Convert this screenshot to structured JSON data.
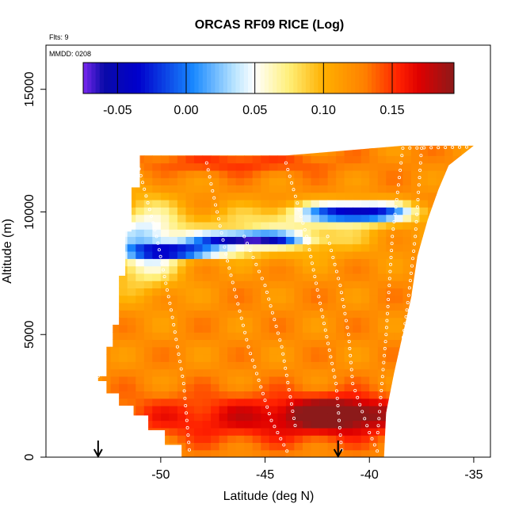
{
  "chart_data": {
    "type": "heatmap",
    "title": "ORCAS RF09 RICE (Log)",
    "annotations": {
      "flights": "Flts: 9",
      "date": "MMDD: 0208"
    },
    "xlabel": "Latitude (deg N)",
    "ylabel": "Altitude (m)",
    "xlim": [
      -55.5,
      -34.2
    ],
    "ylim": [
      0,
      16800
    ],
    "x_ticks": [
      -50,
      -45,
      -40,
      -35
    ],
    "x_tick_labels": [
      "-50",
      "-45",
      "-40",
      "-35"
    ],
    "y_ticks": [
      0,
      5000,
      10000,
      15000
    ],
    "y_tick_labels": [
      "0",
      "5000",
      "10000",
      "15000"
    ],
    "colorbar": {
      "range": [
        -0.075,
        0.195
      ],
      "ticks": [
        -0.05,
        0.0,
        0.05,
        0.1,
        0.15
      ],
      "tick_labels": [
        "-0.05",
        "0.00",
        "0.05",
        "0.10",
        "0.15"
      ],
      "colors": [
        "#7a28f0",
        "#0a0aa8",
        "#0000cc",
        "#1888ff",
        "#b8e4ff",
        "#ffffff",
        "#ffef78",
        "#ffb000",
        "#ff8000",
        "#ff2000",
        "#dd0000",
        "#8c1a1a"
      ],
      "color_stops": [
        -0.075,
        -0.06,
        -0.035,
        0.005,
        0.035,
        0.05,
        0.075,
        0.1,
        0.13,
        0.155,
        0.17,
        0.195
      ]
    },
    "domain_outline": [
      [
        -53.0,
        3100
      ],
      [
        -53.0,
        3300
      ],
      [
        -52.6,
        3300
      ],
      [
        -52.6,
        4500
      ],
      [
        -52.3,
        4500
      ],
      [
        -52.3,
        5400
      ],
      [
        -52.0,
        5400
      ],
      [
        -52.0,
        7400
      ],
      [
        -51.7,
        7400
      ],
      [
        -51.7,
        9200
      ],
      [
        -51.4,
        9200
      ],
      [
        -51.4,
        11000
      ],
      [
        -51.0,
        11000
      ],
      [
        -51.0,
        12300
      ],
      [
        -44.0,
        12300
      ],
      [
        -38.4,
        12700
      ],
      [
        -35.0,
        12700
      ],
      [
        -36.2,
        11900
      ],
      [
        -36.7,
        10900
      ],
      [
        -37.2,
        9700
      ],
      [
        -37.7,
        8200
      ],
      [
        -38.0,
        6500
      ],
      [
        -38.4,
        5000
      ],
      [
        -38.8,
        3500
      ],
      [
        -39.2,
        1800
      ],
      [
        -39.3,
        0
      ],
      [
        -49.0,
        0
      ],
      [
        -49.0,
        500
      ],
      [
        -49.8,
        500
      ],
      [
        -49.8,
        1100
      ],
      [
        -50.6,
        1100
      ],
      [
        -50.6,
        1700
      ],
      [
        -51.3,
        1700
      ],
      [
        -51.3,
        2100
      ],
      [
        -52.0,
        2100
      ],
      [
        -52.0,
        2600
      ],
      [
        -52.6,
        2600
      ],
      [
        -52.6,
        3100
      ]
    ],
    "field_features": [
      {
        "name": "background",
        "value": 0.122
      },
      {
        "name": "low-altitude red band",
        "lat": -44.0,
        "alt": 1600,
        "lat_width": 9.0,
        "alt_width": 1000,
        "value": 0.17
      },
      {
        "name": "near-surface red core",
        "lat": -41.5,
        "alt": 1800,
        "lat_width": 2.2,
        "alt_width": 600,
        "value": 0.185
      },
      {
        "name": "upper red band",
        "lat": -46.5,
        "alt": 12000,
        "lat_width": 5.0,
        "alt_width": 450,
        "value": 0.15
      },
      {
        "name": "high-lat western minimum",
        "lat": -50.8,
        "alt": 8700,
        "lat_width": 1.8,
        "alt_width": 1700,
        "value": 0.035
      },
      {
        "name": "cross-section blue streak",
        "lat": -40.5,
        "alt": 10000,
        "lat_width": 2.5,
        "alt_width": 400,
        "value": -0.045
      },
      {
        "name": "upper blue layer",
        "lat": -46.0,
        "alt": 8900,
        "lat_width": 2.5,
        "alt_width": 250,
        "value": -0.04
      },
      {
        "name": "lower blue layer",
        "lat": -49.0,
        "alt": 8400,
        "lat_width": 2.3,
        "alt_width": 230,
        "value": -0.03
      },
      {
        "name": "pale mid-level wedge",
        "lat": -44.5,
        "alt": 9200,
        "lat_width": 4.5,
        "alt_width": 1000,
        "value": 0.07
      }
    ],
    "flight_tracks": [
      {
        "name": "ascent-west",
        "points": [
          [
            -51.2,
            12300
          ],
          [
            -50.2,
            9000
          ],
          [
            -49.5,
            6000
          ],
          [
            -48.9,
            3000
          ],
          [
            -48.6,
            0
          ]
        ]
      },
      {
        "name": "descent-mid",
        "points": [
          [
            -47.8,
            12000
          ],
          [
            -46.8,
            8000
          ],
          [
            -45.8,
            4500
          ],
          [
            -44.7,
            1500
          ],
          [
            -43.8,
            0
          ]
        ]
      },
      {
        "name": "ascent-central",
        "points": [
          [
            -46.0,
            9000
          ],
          [
            -45.0,
            7000
          ],
          [
            -44.2,
            4500
          ],
          [
            -43.5,
            1000
          ]
        ]
      },
      {
        "name": "descent-east",
        "points": [
          [
            -44.0,
            12000
          ],
          [
            -43.0,
            9000
          ],
          [
            -42.3,
            6000
          ],
          [
            -41.6,
            3000
          ],
          [
            -41.3,
            0
          ]
        ]
      },
      {
        "name": "profile-east",
        "points": [
          [
            -42.0,
            9000
          ],
          [
            -41.4,
            7000
          ],
          [
            -41.0,
            5000
          ],
          [
            -40.8,
            3000
          ],
          [
            -40.0,
            1000
          ],
          [
            -39.5,
            0
          ]
        ]
      },
      {
        "name": "climb-east",
        "points": [
          [
            -39.6,
            1000
          ],
          [
            -39.2,
            5000
          ],
          [
            -38.9,
            9000
          ],
          [
            -38.4,
            12600
          ],
          [
            -35.0,
            12650
          ]
        ]
      },
      {
        "name": "descent-far-east",
        "points": [
          [
            -37.5,
            12600
          ],
          [
            -37.8,
            9000
          ],
          [
            -38.2,
            6000
          ],
          [
            -38.6,
            3500
          ]
        ]
      },
      {
        "name": "step-west",
        "points": [
          [
            -53.0,
            3300
          ],
          [
            -52.5,
            5500
          ],
          [
            -52.0,
            8500
          ],
          [
            -51.5,
            11500
          ]
        ]
      }
    ],
    "arrows": [
      {
        "name": "arrow-1",
        "lat": -53.0
      },
      {
        "name": "arrow-2",
        "lat": -41.5
      }
    ]
  }
}
